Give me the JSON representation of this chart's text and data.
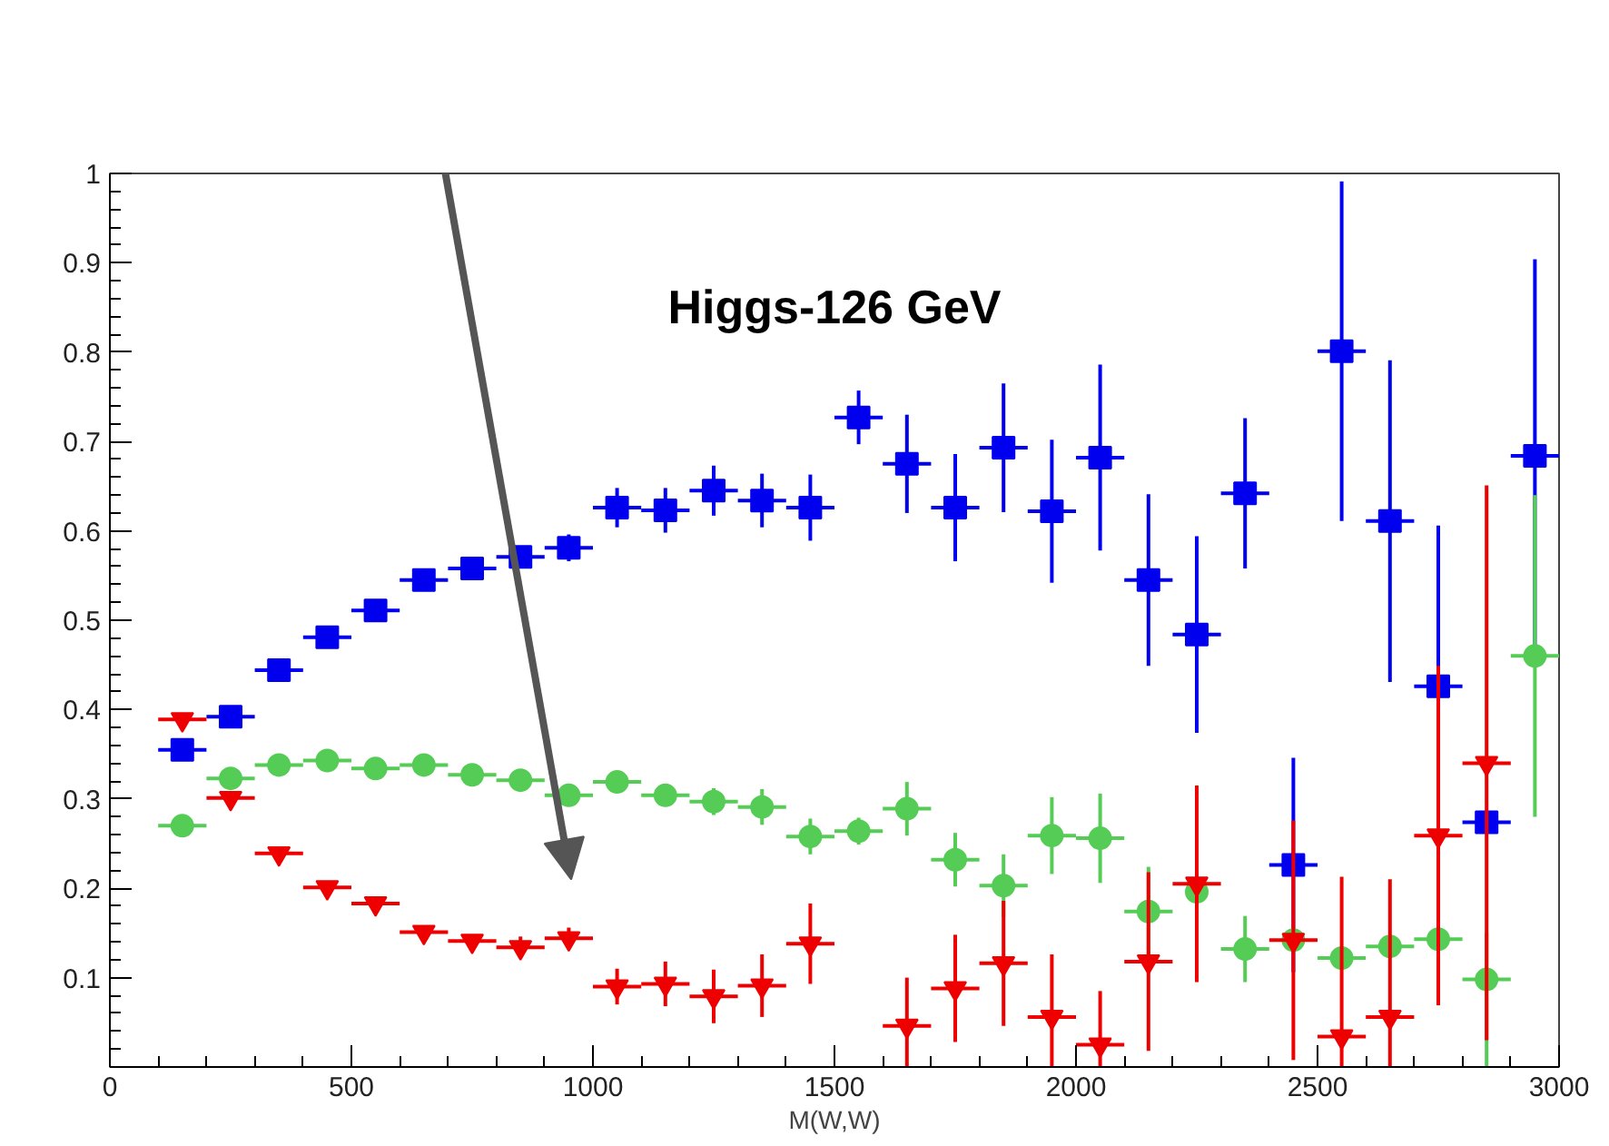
{
  "chart_data": {
    "type": "scatter",
    "xlabel": "M(W,W)",
    "annotations": [
      "Higgs-126 GeV"
    ],
    "x": [
      150,
      250,
      350,
      450,
      550,
      650,
      750,
      850,
      950,
      1050,
      1150,
      1250,
      1350,
      1450,
      1550,
      1650,
      1750,
      1850,
      1950,
      2050,
      2150,
      2250,
      2350,
      2450,
      2550,
      2650,
      2750,
      2850,
      2950
    ],
    "series": [
      {
        "color": "#0000ee",
        "xerrors": [
          50,
          50,
          50,
          50,
          50,
          50,
          50,
          50,
          50,
          50,
          50,
          50,
          50,
          50,
          50,
          50,
          50,
          50,
          50,
          50,
          50,
          50,
          50,
          50,
          50,
          50,
          50,
          50,
          50
        ],
        "marker": "square",
        "values": [
          0.355,
          0.392,
          0.444,
          0.481,
          0.511,
          0.545,
          0.558,
          0.571,
          0.581,
          0.626,
          0.623,
          0.645,
          0.634,
          0.626,
          0.727,
          0.675,
          0.626,
          0.693,
          0.622,
          0.682,
          0.545,
          0.484,
          0.642,
          0.226,
          0.801,
          0.611,
          0.426,
          0.274,
          0.684
        ],
        "errors": [
          null,
          null,
          null,
          null,
          null,
          null,
          null,
          0.01,
          0.015,
          0.022,
          0.025,
          0.028,
          0.03,
          0.037,
          0.03,
          0.055,
          0.06,
          0.072,
          0.08,
          0.104,
          0.096,
          0.11,
          0.084,
          0.12,
          0.19,
          0.18,
          0.18,
          null,
          0.22
        ]
      },
      {
        "color": "#55cc55",
        "xerrors": [
          50,
          50,
          50,
          50,
          50,
          50,
          50,
          50,
          50,
          50,
          50,
          50,
          50,
          50,
          50,
          50,
          50,
          50,
          50,
          50,
          50,
          null,
          50,
          null,
          50,
          50,
          50,
          50,
          50
        ],
        "marker": "circle",
        "values": [
          0.27,
          0.323,
          0.338,
          0.343,
          0.334,
          0.338,
          0.327,
          0.321,
          0.304,
          0.319,
          0.304,
          0.297,
          0.291,
          0.258,
          0.264,
          0.289,
          0.232,
          0.203,
          0.259,
          0.256,
          0.174,
          0.196,
          0.132,
          0.142,
          0.122,
          0.135,
          0.143,
          0.098,
          0.46
        ],
        "errors": [
          null,
          null,
          null,
          null,
          null,
          null,
          null,
          null,
          null,
          0.012,
          0.012,
          0.015,
          0.02,
          0.02,
          0.015,
          0.03,
          0.03,
          0.035,
          0.043,
          0.05,
          0.05,
          null,
          0.037,
          null,
          null,
          null,
          null,
          [
            0,
            0.15
          ],
          0.18
        ]
      },
      {
        "color": "#ee0000",
        "xerrors": [
          50,
          50,
          50,
          50,
          50,
          50,
          50,
          50,
          50,
          50,
          50,
          50,
          50,
          50,
          null,
          50,
          50,
          50,
          50,
          50,
          50,
          50,
          null,
          50,
          50,
          50,
          50,
          50,
          null
        ],
        "marker": "triangle",
        "values": [
          0.389,
          0.301,
          0.239,
          0.201,
          0.183,
          0.151,
          0.141,
          0.134,
          0.144,
          0.09,
          0.093,
          0.079,
          0.091,
          0.138,
          null,
          0.046,
          0.088,
          0.116,
          0.056,
          0.025,
          0.118,
          0.205,
          null,
          0.142,
          0.034,
          0.056,
          0.259,
          0.34,
          null
        ],
        "errors": [
          null,
          null,
          null,
          null,
          null,
          null,
          null,
          0.012,
          0.012,
          0.02,
          0.025,
          0.03,
          0.035,
          0.045,
          null,
          [
            0,
            0.1
          ],
          0.06,
          0.07,
          [
            0,
            0.126
          ],
          [
            0,
            0.085
          ],
          0.1,
          0.11,
          null,
          0.134,
          [
            0,
            0.213
          ],
          [
            0,
            0.21
          ],
          0.19,
          [
            0.03,
            0.651
          ],
          null
        ]
      }
    ],
    "xlim": [
      0,
      3000
    ],
    "ylim": [
      0,
      1
    ],
    "xticks": [
      0,
      500,
      1000,
      1500,
      2000,
      2500,
      3000
    ],
    "yticks": [
      0.1,
      0.2,
      0.3,
      0.4,
      0.5,
      0.6,
      0.7,
      0.8,
      0.9,
      1
    ]
  }
}
